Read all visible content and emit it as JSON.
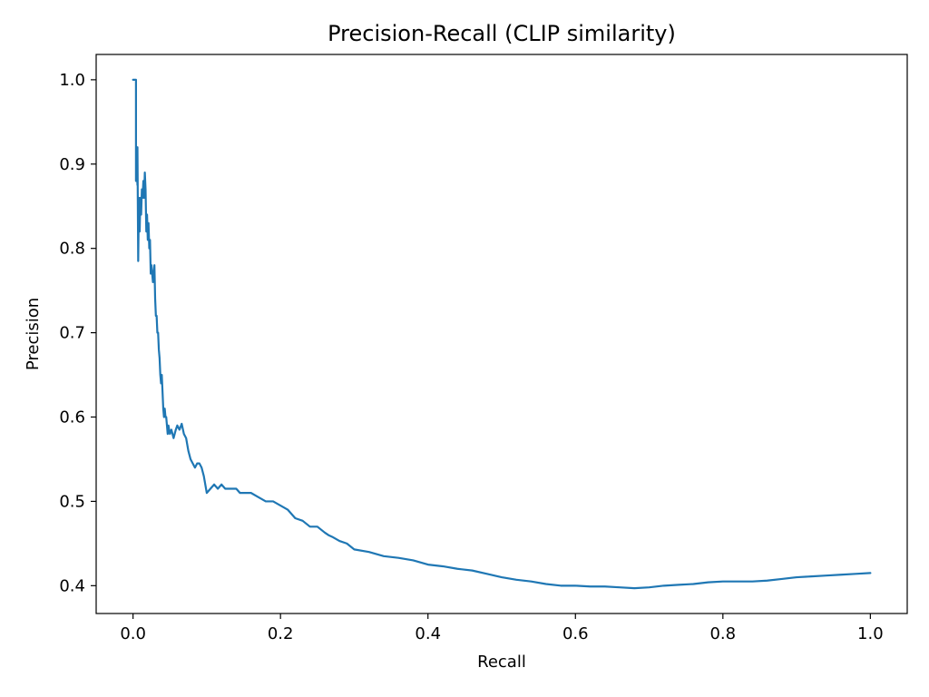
{
  "chart_data": {
    "type": "line",
    "title": "Precision-Recall (CLIP similarity)",
    "xlabel": "Recall",
    "ylabel": "Precision",
    "xlim": [
      -0.05,
      1.05
    ],
    "ylim": [
      0.367,
      1.03
    ],
    "xticks": [
      0.0,
      0.2,
      0.4,
      0.6,
      0.8,
      1.0
    ],
    "xtick_labels": [
      "0.0",
      "0.2",
      "0.4",
      "0.6",
      "0.8",
      "1.0"
    ],
    "yticks": [
      0.4,
      0.5,
      0.6,
      0.7,
      0.8,
      0.9,
      1.0
    ],
    "ytick_labels": [
      "0.4",
      "0.5",
      "0.6",
      "0.7",
      "0.8",
      "0.9",
      "1.0"
    ],
    "grid": false,
    "legend": "none",
    "series": [
      {
        "color": "#1f77b4",
        "x": [
          0.0,
          0.004,
          0.004,
          0.005,
          0.006,
          0.006,
          0.007,
          0.008,
          0.009,
          0.01,
          0.011,
          0.012,
          0.013,
          0.014,
          0.015,
          0.016,
          0.017,
          0.018,
          0.019,
          0.02,
          0.021,
          0.022,
          0.023,
          0.024,
          0.025,
          0.027,
          0.029,
          0.03,
          0.031,
          0.032,
          0.033,
          0.034,
          0.035,
          0.036,
          0.037,
          0.038,
          0.039,
          0.04,
          0.041,
          0.042,
          0.043,
          0.044,
          0.045,
          0.046,
          0.047,
          0.048,
          0.05,
          0.052,
          0.055,
          0.058,
          0.06,
          0.063,
          0.066,
          0.069,
          0.072,
          0.075,
          0.078,
          0.081,
          0.084,
          0.087,
          0.09,
          0.093,
          0.096,
          0.1,
          0.105,
          0.11,
          0.115,
          0.12,
          0.125,
          0.13,
          0.135,
          0.14,
          0.145,
          0.15,
          0.16,
          0.17,
          0.18,
          0.19,
          0.2,
          0.21,
          0.22,
          0.23,
          0.24,
          0.25,
          0.26,
          0.265,
          0.27,
          0.28,
          0.29,
          0.3,
          0.32,
          0.34,
          0.36,
          0.38,
          0.4,
          0.42,
          0.44,
          0.46,
          0.48,
          0.5,
          0.52,
          0.54,
          0.56,
          0.58,
          0.6,
          0.62,
          0.64,
          0.66,
          0.68,
          0.7,
          0.72,
          0.74,
          0.76,
          0.78,
          0.8,
          0.82,
          0.84,
          0.86,
          0.88,
          0.9,
          0.92,
          0.94,
          0.96,
          0.98,
          1.0
        ],
        "y": [
          1.0,
          1.0,
          0.88,
          0.9,
          0.875,
          0.92,
          0.785,
          0.86,
          0.82,
          0.86,
          0.84,
          0.87,
          0.86,
          0.88,
          0.86,
          0.89,
          0.87,
          0.82,
          0.84,
          0.81,
          0.83,
          0.8,
          0.81,
          0.77,
          0.78,
          0.76,
          0.78,
          0.74,
          0.72,
          0.72,
          0.7,
          0.7,
          0.68,
          0.67,
          0.65,
          0.64,
          0.65,
          0.63,
          0.61,
          0.6,
          0.61,
          0.6,
          0.6,
          0.59,
          0.58,
          0.59,
          0.58,
          0.585,
          0.575,
          0.585,
          0.59,
          0.585,
          0.592,
          0.58,
          0.575,
          0.56,
          0.55,
          0.545,
          0.54,
          0.545,
          0.545,
          0.54,
          0.53,
          0.51,
          0.515,
          0.52,
          0.515,
          0.52,
          0.515,
          0.515,
          0.515,
          0.515,
          0.51,
          0.51,
          0.51,
          0.505,
          0.5,
          0.5,
          0.495,
          0.49,
          0.48,
          0.477,
          0.47,
          0.47,
          0.463,
          0.46,
          0.458,
          0.453,
          0.45,
          0.443,
          0.44,
          0.435,
          0.433,
          0.43,
          0.425,
          0.423,
          0.42,
          0.418,
          0.414,
          0.41,
          0.407,
          0.405,
          0.402,
          0.4,
          0.4,
          0.399,
          0.399,
          0.398,
          0.397,
          0.398,
          0.4,
          0.401,
          0.402,
          0.404,
          0.405,
          0.405,
          0.405,
          0.406,
          0.408,
          0.41,
          0.411,
          0.412,
          0.413,
          0.414,
          0.415
        ]
      }
    ]
  }
}
